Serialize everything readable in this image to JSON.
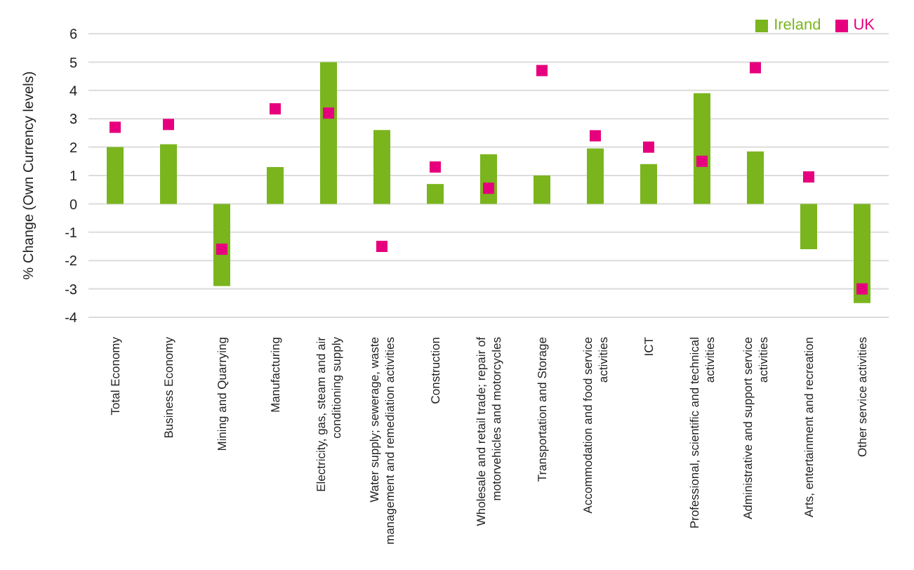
{
  "chart_data": {
    "type": "bar",
    "ylabel": "% Change (Own Currency levels)",
    "categories": [
      "Total Economy",
      "Business Economy",
      "Mining and Quarrying",
      "Manufacturing",
      "Electricity, gas, steam and air conditioning supply",
      "Water supply; sewerage, waste management and remediation activities",
      "Construction",
      "Wholesale and retail trade; repair of motorvehicles and motorcycles",
      "Transportation and Storage",
      "Accommodation and food service activities",
      "ICT",
      "Professional, scientific and technical activities",
      "Administrative and support service activities",
      "Arts, entertainment and recreation",
      "Other service activities"
    ],
    "series": [
      {
        "name": "Ireland",
        "color": "#7ab51d",
        "values": [
          2.0,
          2.1,
          -2.9,
          1.3,
          5.0,
          2.6,
          0.7,
          1.75,
          1.0,
          1.95,
          1.4,
          3.9,
          1.85,
          -1.6,
          -3.5
        ]
      },
      {
        "name": "UK",
        "type": "scatter",
        "color": "#e6007e",
        "marker": "square",
        "values": [
          2.7,
          2.8,
          -1.6,
          3.35,
          3.2,
          -1.5,
          1.3,
          0.55,
          4.7,
          2.4,
          2.0,
          1.5,
          4.8,
          0.95,
          -3.0
        ]
      }
    ],
    "ylim": [
      -4,
      6
    ],
    "yticks": [
      -4,
      -3,
      -2,
      -1,
      0,
      1,
      2,
      3,
      4,
      5,
      6
    ],
    "grid": "y",
    "legend": "top right"
  }
}
